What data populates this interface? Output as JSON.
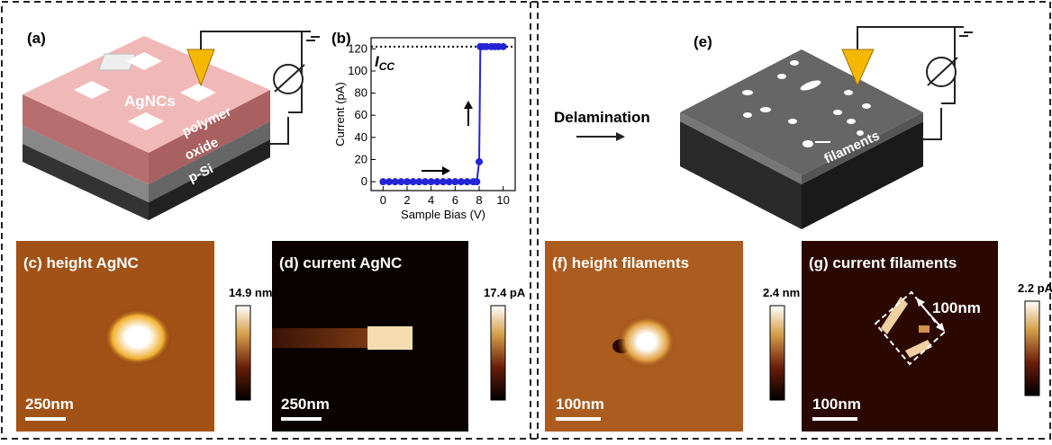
{
  "panels": {
    "a": {
      "label": "(a)",
      "agncs": "AgNCs",
      "layers": [
        "polymer",
        "oxide",
        "p-Si"
      ]
    },
    "b": {
      "label": "(b)"
    },
    "e": {
      "label": "(e)",
      "arrow_text": "Delamination",
      "filaments": "filaments"
    },
    "images": [
      {
        "label": "(c) height AgNC",
        "scale": "250nm",
        "colorbar": "14.9 nm"
      },
      {
        "label": "(d) current AgNC",
        "scale": "250nm",
        "colorbar": "17.4 pA"
      },
      {
        "label": "(f) height filaments",
        "scale": "100nm",
        "colorbar": "2.4 nm"
      },
      {
        "label": "(g) current filaments",
        "scale": "100nm",
        "colorbar": "2.2 pA",
        "annotation": "100nm"
      }
    ]
  },
  "chart_data": {
    "type": "line",
    "xlabel": "Sample Bias (V)",
    "ylabel": "Current (pA)",
    "x": [
      0,
      0.5,
      1,
      1.5,
      2,
      2.5,
      3,
      3.5,
      4,
      4.5,
      5,
      5.5,
      6,
      6.5,
      7,
      7.5,
      7.8,
      8.0,
      8.1,
      8.3,
      8.6,
      9,
      9.3,
      9.6,
      10
    ],
    "values": [
      0,
      0,
      0,
      0,
      0,
      0,
      0,
      0,
      0,
      0,
      0,
      0,
      0,
      0,
      0,
      0,
      0,
      18,
      122,
      122,
      122,
      122,
      122,
      122,
      122
    ],
    "color": "#2323d8",
    "xlim": [
      -1,
      11
    ],
    "xticks": [
      0,
      2,
      4,
      6,
      8,
      10
    ],
    "ylim": [
      -8,
      130
    ],
    "yticks": [
      0,
      20,
      40,
      60,
      80,
      100,
      120
    ],
    "compliance": 122,
    "compliance_label": "I",
    "compliance_sub": "CC"
  }
}
